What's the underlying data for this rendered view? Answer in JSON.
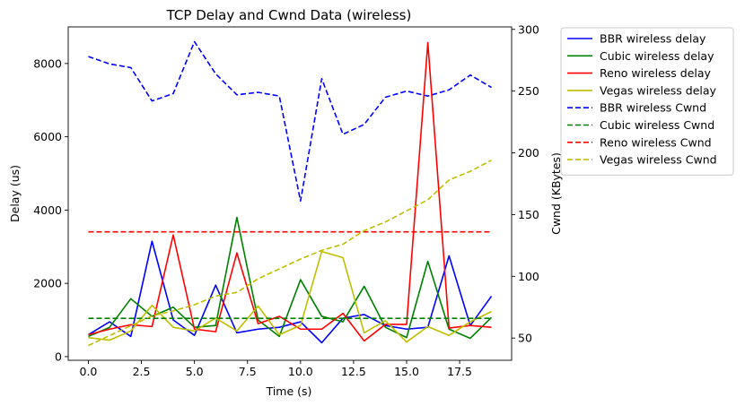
{
  "chart_data": {
    "type": "line",
    "title": "TCP Delay and Cwnd Data (wireless)",
    "xlabel": "Time (s)",
    "ylabel_left": "Delay (us)",
    "ylabel_right": "Cwnd (KBytes)",
    "xlim": [
      -0.95,
      19.95
    ],
    "ylim_left": [
      -100,
      9000
    ],
    "ylim_right": [
      32,
      302
    ],
    "x_ticks": [
      0.0,
      2.5,
      5.0,
      7.5,
      10.0,
      12.5,
      15.0,
      17.5
    ],
    "x_tick_labels": [
      "0.0",
      "2.5",
      "5.0",
      "7.5",
      "10.0",
      "12.5",
      "15.0",
      "17.5"
    ],
    "y_left_ticks": [
      0,
      2000,
      4000,
      6000,
      8000
    ],
    "y_left_tick_labels": [
      "0",
      "2000",
      "4000",
      "6000",
      "8000"
    ],
    "y_right_ticks": [
      50,
      100,
      150,
      200,
      250,
      300
    ],
    "y_right_tick_labels": [
      "50",
      "100",
      "150",
      "200",
      "250",
      "300"
    ],
    "grid": false,
    "legend_position": "outside-right-top",
    "x": [
      0,
      1,
      2,
      3,
      4,
      5,
      6,
      7,
      8,
      9,
      10,
      11,
      12,
      13,
      14,
      15,
      16,
      17,
      18,
      19
    ],
    "series": [
      {
        "name": "BBR wireless delay",
        "axis": "left",
        "color": "#0000ff",
        "style": "solid",
        "values": [
          600,
          950,
          550,
          3150,
          1000,
          580,
          1950,
          650,
          750,
          800,
          950,
          380,
          1050,
          1150,
          850,
          750,
          800,
          2750,
          850,
          1650
        ]
      },
      {
        "name": "Cubic wireless delay",
        "axis": "left",
        "color": "#008000",
        "style": "solid",
        "values": [
          550,
          800,
          1580,
          1100,
          1350,
          800,
          850,
          3800,
          1000,
          550,
          2100,
          1100,
          950,
          1920,
          800,
          520,
          2600,
          750,
          500,
          1070
        ]
      },
      {
        "name": "Reno wireless delay",
        "axis": "left",
        "color": "#ff0000",
        "style": "solid",
        "values": [
          600,
          750,
          870,
          820,
          3320,
          750,
          680,
          2830,
          900,
          1100,
          750,
          750,
          1180,
          430,
          880,
          880,
          8570,
          780,
          850,
          800
        ]
      },
      {
        "name": "Vegas wireless delay",
        "axis": "left",
        "color": "#bfbf00",
        "style": "solid",
        "values": [
          520,
          450,
          700,
          1400,
          800,
          700,
          1050,
          700,
          1380,
          600,
          850,
          2870,
          2700,
          650,
          980,
          400,
          820,
          580,
          950,
          1230
        ]
      },
      {
        "name": "BBR wireless Cwnd",
        "axis": "right",
        "color": "#0000ff",
        "style": "dashed",
        "values": [
          278,
          272,
          269,
          242,
          248,
          290,
          264,
          247,
          249,
          246,
          161,
          260,
          215,
          223,
          245,
          250,
          246,
          251,
          263,
          253
        ]
      },
      {
        "name": "Cubic wireless Cwnd",
        "axis": "right",
        "color": "#008000",
        "style": "dashed",
        "values": [
          66,
          66,
          66,
          66,
          66,
          66,
          66,
          66,
          66,
          66,
          66,
          66,
          66,
          66,
          66,
          66,
          66,
          66,
          66,
          66
        ]
      },
      {
        "name": "Reno wireless Cwnd",
        "axis": "right",
        "color": "#ff0000",
        "style": "dashed",
        "values": [
          136,
          136,
          136,
          136,
          136,
          136,
          136,
          136,
          136,
          136,
          136,
          136,
          136,
          136,
          136,
          136,
          136,
          136,
          136,
          136
        ]
      },
      {
        "name": "Vegas wireless Cwnd",
        "axis": "right",
        "color": "#bfbf00",
        "style": "dashed",
        "values": [
          44,
          52,
          60,
          68,
          72,
          77,
          84,
          87,
          98,
          106,
          114,
          121,
          126,
          137,
          144,
          153,
          162,
          178,
          185,
          194
        ]
      }
    ]
  }
}
